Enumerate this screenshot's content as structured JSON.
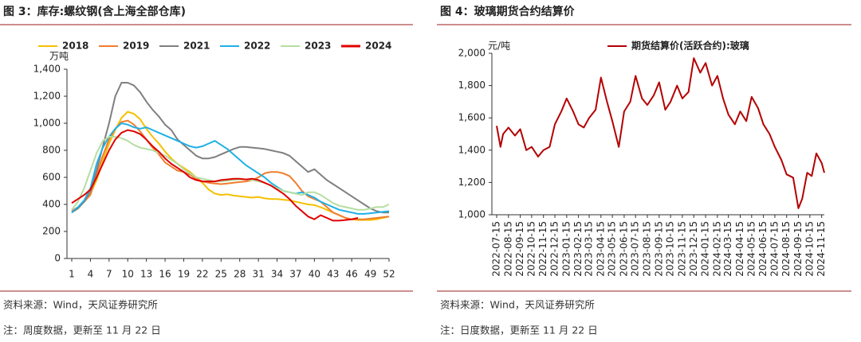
{
  "chart_data": [
    {
      "type": "line",
      "title": "图 3：库存:螺纹钢(含上海全部仓库)",
      "y_label": "万吨",
      "source": "资料来源：Wind，天风证券研究所",
      "note": "注：周度数据，更新至 11 月 22 日",
      "x": [
        1,
        2,
        3,
        4,
        5,
        6,
        7,
        8,
        9,
        10,
        11,
        12,
        13,
        14,
        15,
        16,
        17,
        18,
        19,
        20,
        21,
        22,
        23,
        24,
        25,
        26,
        27,
        28,
        29,
        30,
        31,
        32,
        33,
        34,
        35,
        36,
        37,
        38,
        39,
        40,
        41,
        42,
        43,
        44,
        45,
        46,
        47,
        48,
        49,
        50,
        51,
        52
      ],
      "xlim": [
        1,
        52
      ],
      "xticks": [
        1,
        4,
        7,
        10,
        13,
        16,
        19,
        22,
        25,
        28,
        31,
        34,
        37,
        40,
        43,
        46,
        49,
        52
      ],
      "ylim": [
        0,
        1400
      ],
      "yticks": [
        0,
        200,
        400,
        600,
        800,
        {
          "value": 1000,
          "label": "1,000"
        },
        {
          "value": 1200,
          "label": "1,200"
        },
        {
          "value": 1400,
          "label": "1,400"
        }
      ],
      "series": [
        {
          "name": "2018",
          "color": "#f5c000",
          "values": [
            340,
            370,
            420,
            480,
            580,
            720,
            850,
            950,
            1040,
            1085,
            1070,
            1030,
            960,
            900,
            850,
            790,
            740,
            700,
            670,
            640,
            600,
            560,
            510,
            480,
            470,
            475,
            465,
            460,
            455,
            450,
            455,
            445,
            440,
            440,
            435,
            430,
            420,
            410,
            400,
            395,
            380,
            360,
            340,
            320,
            300,
            290,
            285,
            285,
            285,
            290,
            300,
            310
          ]
        },
        {
          "name": "2019",
          "color": "#f07d2e",
          "values": [
            350,
            380,
            420,
            470,
            620,
            760,
            880,
            960,
            1010,
            1020,
            990,
            940,
            880,
            820,
            770,
            710,
            680,
            650,
            640,
            620,
            590,
            570,
            560,
            555,
            550,
            555,
            560,
            565,
            570,
            580,
            600,
            630,
            640,
            640,
            630,
            610,
            560,
            500,
            460,
            440,
            420,
            380,
            340,
            320,
            300,
            290,
            290,
            290,
            295,
            300,
            305,
            310
          ]
        },
        {
          "name": "2021",
          "color": "#7f7f7f",
          "values": [
            340,
            370,
            420,
            500,
            650,
            830,
            1000,
            1200,
            1300,
            1300,
            1280,
            1230,
            1160,
            1100,
            1050,
            990,
            950,
            880,
            840,
            800,
            760,
            740,
            740,
            750,
            770,
            790,
            810,
            825,
            825,
            820,
            815,
            810,
            800,
            790,
            780,
            760,
            720,
            680,
            640,
            660,
            620,
            580,
            550,
            520,
            490,
            460,
            430,
            400,
            370,
            350,
            340,
            340
          ]
        },
        {
          "name": "2022",
          "color": "#1fb0e6",
          "values": [
            340,
            380,
            430,
            520,
            700,
            820,
            900,
            960,
            1000,
            990,
            970,
            960,
            970,
            950,
            930,
            910,
            890,
            870,
            850,
            830,
            820,
            830,
            850,
            870,
            840,
            810,
            770,
            730,
            690,
            660,
            630,
            600,
            560,
            530,
            500,
            490,
            480,
            490,
            470,
            450,
            420,
            400,
            380,
            360,
            350,
            340,
            330,
            330,
            335,
            340,
            345,
            350
          ]
        },
        {
          "name": "2023",
          "color": "#b5dea0",
          "values": [
            360,
            420,
            520,
            650,
            780,
            870,
            900,
            900,
            890,
            870,
            840,
            820,
            810,
            800,
            780,
            760,
            730,
            700,
            660,
            630,
            600,
            590,
            580,
            570,
            570,
            575,
            580,
            585,
            585,
            580,
            570,
            560,
            540,
            520,
            500,
            490,
            480,
            470,
            490,
            490,
            470,
            440,
            410,
            390,
            380,
            370,
            360,
            360,
            370,
            380,
            380,
            400
          ]
        },
        {
          "name": "2024",
          "color": "#e00000",
          "values": [
            410,
            440,
            470,
            510,
            600,
            700,
            800,
            880,
            930,
            950,
            940,
            920,
            880,
            830,
            790,
            740,
            700,
            670,
            640,
            600,
            580,
            570,
            570,
            570,
            580,
            585,
            590,
            590,
            585,
            590,
            580,
            560,
            540,
            510,
            480,
            440,
            390,
            350,
            310,
            290,
            320,
            300,
            280,
            280,
            285,
            290,
            300,
            null,
            null,
            null,
            null,
            null
          ]
        }
      ]
    },
    {
      "type": "line",
      "title": "图 4：玻璃期货合约结算价",
      "y_label": "元/吨",
      "source": "资料来源：Wind，天风证券研究所",
      "note": "注：日度数据，更新至 11 月 22 日",
      "x": [
        "2022-07-15",
        "2022-07-25",
        "2022-08-01",
        "2022-08-15",
        "2022-09-01",
        "2022-09-15",
        "2022-10-01",
        "2022-10-15",
        "2022-11-01",
        "2022-11-15",
        "2022-12-01",
        "2022-12-15",
        "2023-01-01",
        "2023-01-15",
        "2023-02-01",
        "2023-02-15",
        "2023-03-01",
        "2023-03-15",
        "2023-04-01",
        "2023-04-15",
        "2023-05-01",
        "2023-05-15",
        "2023-06-01",
        "2023-06-15",
        "2023-07-01",
        "2023-07-15",
        "2023-08-01",
        "2023-08-15",
        "2023-09-01",
        "2023-09-15",
        "2023-10-01",
        "2023-10-15",
        "2023-11-01",
        "2023-11-15",
        "2023-12-01",
        "2023-12-15",
        "2024-01-01",
        "2024-01-15",
        "2024-02-01",
        "2024-02-15",
        "2024-03-01",
        "2024-03-15",
        "2024-04-01",
        "2024-04-15",
        "2024-05-01",
        "2024-05-15",
        "2024-06-01",
        "2024-06-15",
        "2024-07-01",
        "2024-07-15",
        "2024-08-01",
        "2024-08-15",
        "2024-09-01",
        "2024-09-15",
        "2024-09-25",
        "2024-10-08",
        "2024-10-20",
        "2024-11-01",
        "2024-11-15",
        "2024-11-22"
      ],
      "xlim": [
        "2022-07-15",
        "2024-11-22"
      ],
      "xticks": [
        "2022-07-15",
        "2022-08-15",
        "2022-09-15",
        "2022-10-15",
        "2022-11-15",
        "2022-12-15",
        "2023-01-15",
        "2023-02-15",
        "2023-03-15",
        "2023-04-15",
        "2023-05-15",
        "2023-06-15",
        "2023-07-15",
        "2023-08-15",
        "2023-09-15",
        "2023-10-15",
        "2023-11-15",
        "2023-12-15",
        "2024-01-15",
        "2024-02-15",
        "2024-03-15",
        "2024-04-15",
        "2024-05-15",
        "2024-06-15",
        "2024-07-15",
        "2024-08-15",
        "2024-09-15",
        "2024-10-15",
        "2024-11-15"
      ],
      "ylim": [
        1000,
        2000
      ],
      "yticks": [
        {
          "value": 1000,
          "label": "1,000"
        },
        {
          "value": 1200,
          "label": "1,200"
        },
        {
          "value": 1400,
          "label": "1,400"
        },
        {
          "value": 1600,
          "label": "1,600"
        },
        {
          "value": 1800,
          "label": "1,800"
        },
        {
          "value": 2000,
          "label": "2,000"
        }
      ],
      "series": [
        {
          "name": "期货结算价(活跃合约):玻璃",
          "color": "#b40000",
          "values": [
            1550,
            1420,
            1500,
            1540,
            1490,
            1530,
            1400,
            1420,
            1360,
            1400,
            1420,
            1560,
            1640,
            1720,
            1640,
            1560,
            1540,
            1600,
            1650,
            1850,
            1700,
            1580,
            1420,
            1640,
            1700,
            1860,
            1720,
            1680,
            1740,
            1820,
            1650,
            1700,
            1800,
            1720,
            1760,
            1970,
            1880,
            1940,
            1800,
            1860,
            1720,
            1620,
            1560,
            1640,
            1580,
            1730,
            1660,
            1560,
            1500,
            1420,
            1340,
            1250,
            1230,
            1040,
            1100,
            1260,
            1240,
            1380,
            1320,
            1260
          ]
        }
      ]
    }
  ]
}
